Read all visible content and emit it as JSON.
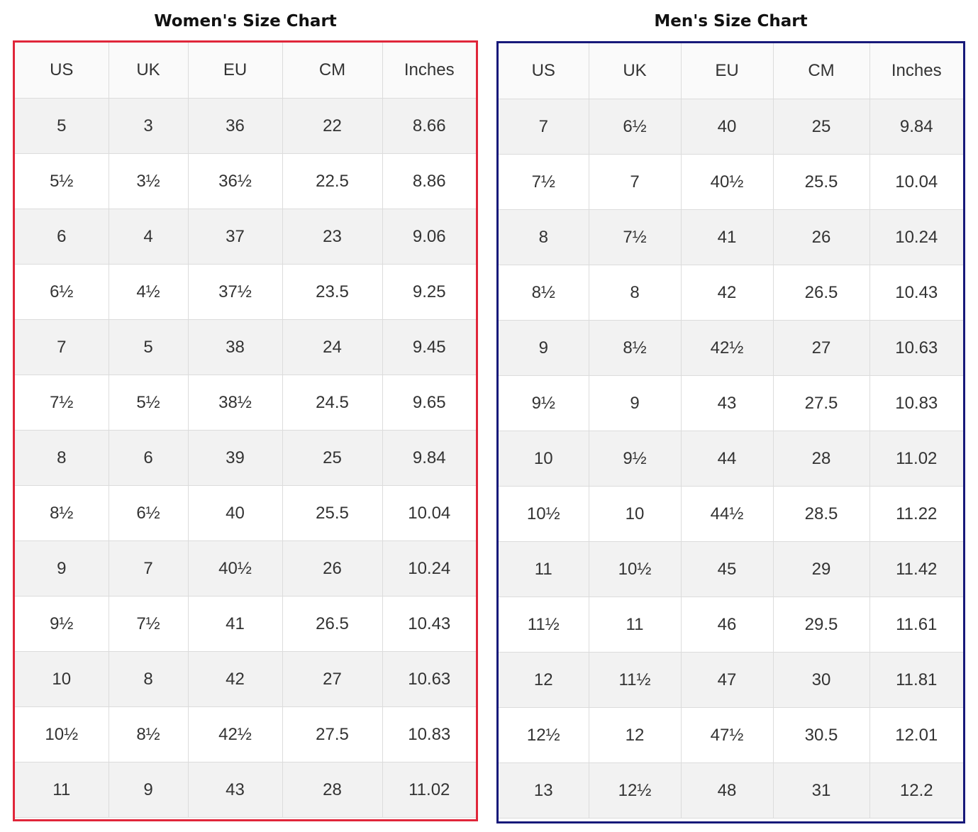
{
  "women": {
    "title": "Women's Size Chart",
    "headers": [
      "US",
      "UK",
      "EU",
      "CM",
      "Inches"
    ],
    "rows": [
      [
        "5",
        "3",
        "36",
        "22",
        "8.66"
      ],
      [
        "5½",
        "3½",
        "36½",
        "22.5",
        "8.86"
      ],
      [
        "6",
        "4",
        "37",
        "23",
        "9.06"
      ],
      [
        "6½",
        "4½",
        "37½",
        "23.5",
        "9.25"
      ],
      [
        "7",
        "5",
        "38",
        "24",
        "9.45"
      ],
      [
        "7½",
        "5½",
        "38½",
        "24.5",
        "9.65"
      ],
      [
        "8",
        "6",
        "39",
        "25",
        "9.84"
      ],
      [
        "8½",
        "6½",
        "40",
        "25.5",
        "10.04"
      ],
      [
        "9",
        "7",
        "40½",
        "26",
        "10.24"
      ],
      [
        "9½",
        "7½",
        "41",
        "26.5",
        "10.43"
      ],
      [
        "10",
        "8",
        "42",
        "27",
        "10.63"
      ],
      [
        "10½",
        "8½",
        "42½",
        "27.5",
        "10.83"
      ],
      [
        "11",
        "9",
        "43",
        "28",
        "11.02"
      ]
    ]
  },
  "men": {
    "title": "Men's Size Chart",
    "headers": [
      "US",
      "UK",
      "EU",
      "CM",
      "Inches"
    ],
    "rows": [
      [
        "7",
        "6½",
        "40",
        "25",
        "9.84"
      ],
      [
        "7½",
        "7",
        "40½",
        "25.5",
        "10.04"
      ],
      [
        "8",
        "7½",
        "41",
        "26",
        "10.24"
      ],
      [
        "8½",
        "8",
        "42",
        "26.5",
        "10.43"
      ],
      [
        "9",
        "8½",
        "42½",
        "27",
        "10.63"
      ],
      [
        "9½",
        "9",
        "43",
        "27.5",
        "10.83"
      ],
      [
        "10",
        "9½",
        "44",
        "28",
        "11.02"
      ],
      [
        "10½",
        "10",
        "44½",
        "28.5",
        "11.22"
      ],
      [
        "11",
        "10½",
        "45",
        "29",
        "11.42"
      ],
      [
        "11½",
        "11",
        "46",
        "29.5",
        "11.61"
      ],
      [
        "12",
        "11½",
        "47",
        "30",
        "11.81"
      ],
      [
        "12½",
        "12",
        "47½",
        "30.5",
        "12.01"
      ],
      [
        "13",
        "12½",
        "48",
        "31",
        "12.2"
      ]
    ]
  }
}
